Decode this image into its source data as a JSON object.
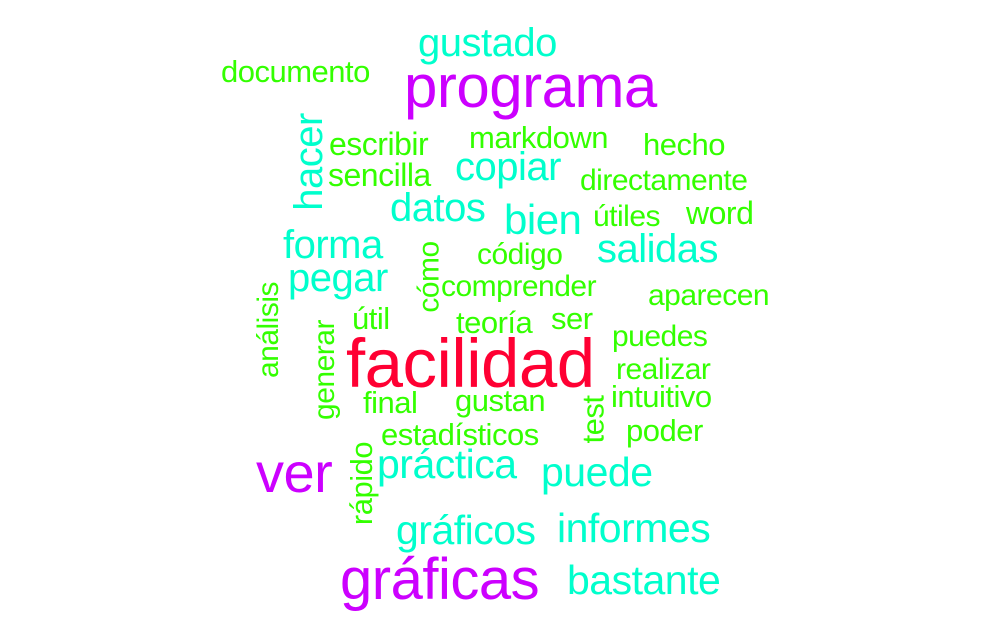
{
  "palette": {
    "magenta": "#cc00ff",
    "red": "#ff0033",
    "cyan": "#00ffcc",
    "green": "#33ff00"
  },
  "words": {
    "gustado": {
      "text": "gustado",
      "color": "#00ffcc"
    },
    "documento": {
      "text": "documento",
      "color": "#33ff00"
    },
    "programa": {
      "text": "programa",
      "color": "#cc00ff"
    },
    "hacer": {
      "text": "hacer",
      "color": "#00ffcc"
    },
    "escribir": {
      "text": "escribir",
      "color": "#33ff00"
    },
    "markdown": {
      "text": "markdown",
      "color": "#33ff00"
    },
    "hecho": {
      "text": "hecho",
      "color": "#33ff00"
    },
    "copiar": {
      "text": "copiar",
      "color": "#00ffcc"
    },
    "sencilla": {
      "text": "sencilla",
      "color": "#33ff00"
    },
    "directamente": {
      "text": "directamente",
      "color": "#33ff00"
    },
    "datos": {
      "text": "datos",
      "color": "#00ffcc"
    },
    "bien": {
      "text": "bien",
      "color": "#00ffcc"
    },
    "utiles": {
      "text": "útiles",
      "color": "#33ff00"
    },
    "word": {
      "text": "word",
      "color": "#33ff00"
    },
    "forma": {
      "text": "forma",
      "color": "#00ffcc"
    },
    "como": {
      "text": "cómo",
      "color": "#33ff00"
    },
    "codigo": {
      "text": "código",
      "color": "#33ff00"
    },
    "salidas": {
      "text": "salidas",
      "color": "#00ffcc"
    },
    "pegar": {
      "text": "pegar",
      "color": "#00ffcc"
    },
    "analisis": {
      "text": "análisis",
      "color": "#33ff00"
    },
    "comprender": {
      "text": "comprender",
      "color": "#33ff00"
    },
    "aparecen": {
      "text": "aparecen",
      "color": "#33ff00"
    },
    "util": {
      "text": "útil",
      "color": "#33ff00"
    },
    "generar": {
      "text": "generar",
      "color": "#33ff00"
    },
    "teoria": {
      "text": "teoría",
      "color": "#33ff00"
    },
    "ser": {
      "text": "ser",
      "color": "#33ff00"
    },
    "puedes": {
      "text": "puedes",
      "color": "#33ff00"
    },
    "facilidad": {
      "text": "facilidad",
      "color": "#ff0033"
    },
    "realizar": {
      "text": "realizar",
      "color": "#33ff00"
    },
    "final": {
      "text": "final",
      "color": "#33ff00"
    },
    "gustan": {
      "text": "gustan",
      "color": "#33ff00"
    },
    "intuitivo": {
      "text": "intuitivo",
      "color": "#33ff00"
    },
    "test": {
      "text": "test",
      "color": "#33ff00"
    },
    "estadisticos": {
      "text": "estadísticos",
      "color": "#33ff00"
    },
    "poder": {
      "text": "poder",
      "color": "#33ff00"
    },
    "ver": {
      "text": "ver",
      "color": "#cc00ff"
    },
    "rapido": {
      "text": "rápido",
      "color": "#33ff00"
    },
    "practica": {
      "text": "práctica",
      "color": "#00ffcc"
    },
    "puede": {
      "text": "puede",
      "color": "#00ffcc"
    },
    "graficos": {
      "text": "gráficos",
      "color": "#00ffcc"
    },
    "informes": {
      "text": "informes",
      "color": "#00ffcc"
    },
    "graficas": {
      "text": "gráficas",
      "color": "#cc00ff"
    },
    "bastante": {
      "text": "bastante",
      "color": "#00ffcc"
    }
  }
}
